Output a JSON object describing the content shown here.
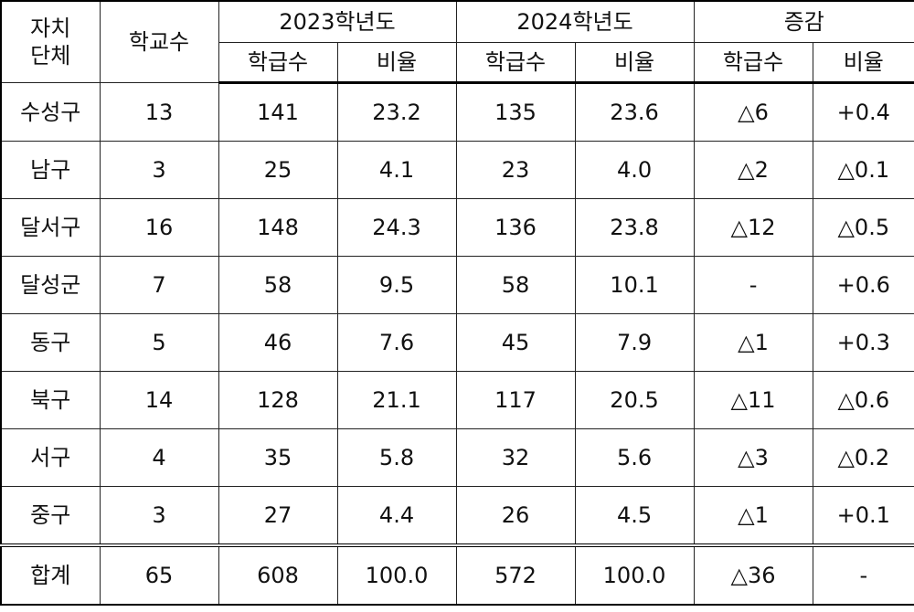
{
  "table": {
    "header": {
      "region": [
        "자치",
        "단체"
      ],
      "schools": "학교수",
      "groups": [
        "2023학년도",
        "2024학년도",
        "증감"
      ],
      "sub": [
        "학급수",
        "비율",
        "학급수",
        "비율",
        "학급수",
        "비율"
      ]
    },
    "rows": [
      [
        "수성구",
        "13",
        "141",
        "23.2",
        "135",
        "23.6",
        "△6",
        "+0.4"
      ],
      [
        "남구",
        "3",
        "25",
        "4.1",
        "23",
        "4.0",
        "△2",
        "△0.1"
      ],
      [
        "달서구",
        "16",
        "148",
        "24.3",
        "136",
        "23.8",
        "△12",
        "△0.5"
      ],
      [
        "달성군",
        "7",
        "58",
        "9.5",
        "58",
        "10.1",
        "-",
        "+0.6"
      ],
      [
        "동구",
        "5",
        "46",
        "7.6",
        "45",
        "7.9",
        "△1",
        "+0.3"
      ],
      [
        "북구",
        "14",
        "128",
        "21.1",
        "117",
        "20.5",
        "△11",
        "△0.6"
      ],
      [
        "서구",
        "4",
        "35",
        "5.8",
        "32",
        "5.6",
        "△3",
        "△0.2"
      ],
      [
        "중구",
        "3",
        "27",
        "4.4",
        "26",
        "4.5",
        "△1",
        "+0.1"
      ]
    ],
    "total": [
      "합계",
      "65",
      "608",
      "100.0",
      "572",
      "100.0",
      "△36",
      "-"
    ]
  }
}
